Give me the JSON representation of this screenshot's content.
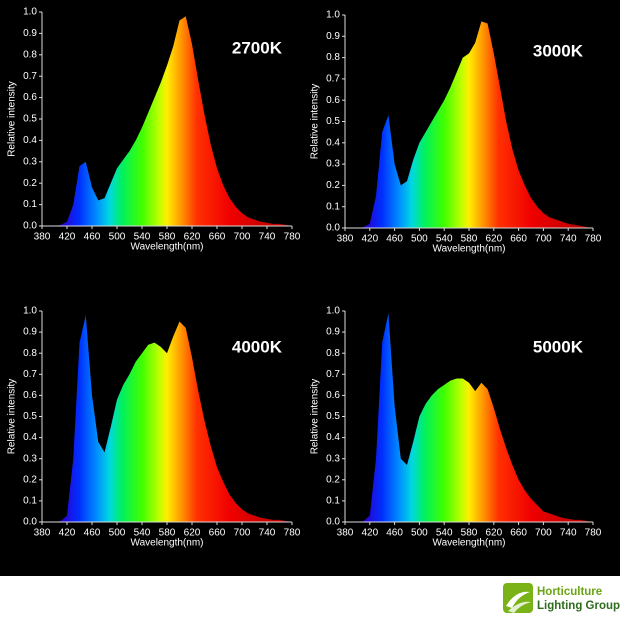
{
  "chart_data": [
    {
      "type": "area",
      "label": "2700K",
      "xlabel": "Wavelength(nm)",
      "ylabel": "Relative intensity",
      "x": [
        380,
        390,
        400,
        410,
        420,
        430,
        440,
        450,
        460,
        470,
        480,
        490,
        500,
        510,
        520,
        530,
        540,
        550,
        560,
        570,
        580,
        590,
        600,
        610,
        620,
        630,
        640,
        650,
        660,
        670,
        680,
        690,
        700,
        710,
        720,
        730,
        740,
        750,
        760,
        770,
        780
      ],
      "values": [
        0,
        0,
        0,
        0.005,
        0.02,
        0.1,
        0.28,
        0.3,
        0.18,
        0.12,
        0.13,
        0.2,
        0.27,
        0.31,
        0.35,
        0.4,
        0.46,
        0.53,
        0.6,
        0.67,
        0.75,
        0.84,
        0.96,
        0.98,
        0.85,
        0.68,
        0.52,
        0.38,
        0.27,
        0.19,
        0.13,
        0.09,
        0.06,
        0.04,
        0.03,
        0.02,
        0.015,
        0.01,
        0.01,
        0.005,
        0
      ],
      "xlim": [
        380,
        780
      ],
      "xticks": [
        380,
        420,
        460,
        500,
        540,
        580,
        620,
        660,
        700,
        740,
        780
      ],
      "ylim": [
        0,
        1
      ],
      "yticks": [
        {
          "value": 0,
          "label": "0.0"
        },
        0.1,
        0.2,
        0.3,
        0.4,
        0.5,
        0.6,
        0.7,
        0.8,
        0.9,
        {
          "value": 1,
          "label": "1.0"
        }
      ]
    },
    {
      "type": "area",
      "label": "3000K",
      "xlabel": "Wavelength(nm)",
      "ylabel": "Relative intensity",
      "x": [
        380,
        390,
        400,
        410,
        420,
        430,
        440,
        450,
        460,
        470,
        480,
        490,
        500,
        510,
        520,
        530,
        540,
        550,
        560,
        570,
        580,
        590,
        600,
        610,
        620,
        630,
        640,
        650,
        660,
        670,
        680,
        690,
        700,
        710,
        720,
        730,
        740,
        750,
        760,
        770,
        780
      ],
      "values": [
        0,
        0,
        0,
        0.005,
        0.02,
        0.15,
        0.45,
        0.53,
        0.3,
        0.2,
        0.22,
        0.32,
        0.4,
        0.45,
        0.5,
        0.55,
        0.6,
        0.66,
        0.73,
        0.8,
        0.82,
        0.87,
        0.97,
        0.96,
        0.82,
        0.66,
        0.5,
        0.37,
        0.27,
        0.2,
        0.14,
        0.1,
        0.07,
        0.05,
        0.04,
        0.03,
        0.02,
        0.015,
        0.01,
        0.005,
        0
      ],
      "xlim": [
        380,
        780
      ],
      "xticks": [
        380,
        420,
        460,
        500,
        540,
        580,
        620,
        660,
        700,
        740,
        780
      ],
      "ylim": [
        0,
        1
      ],
      "yticks": [
        {
          "value": 0,
          "label": "0.0"
        },
        0.1,
        0.2,
        0.3,
        0.4,
        0.5,
        0.6,
        0.7,
        0.8,
        0.9,
        {
          "value": 1,
          "label": "1.0"
        }
      ]
    },
    {
      "type": "area",
      "label": "4000K",
      "xlabel": "Wavelength(nm)",
      "ylabel": "Relative intensity",
      "x": [
        380,
        390,
        400,
        410,
        420,
        430,
        440,
        450,
        460,
        470,
        480,
        490,
        500,
        510,
        520,
        530,
        540,
        550,
        560,
        570,
        580,
        590,
        600,
        610,
        620,
        630,
        640,
        650,
        660,
        670,
        680,
        690,
        700,
        710,
        720,
        730,
        740,
        750,
        760,
        770,
        780
      ],
      "values": [
        0,
        0,
        0,
        0.005,
        0.03,
        0.3,
        0.85,
        0.98,
        0.6,
        0.38,
        0.33,
        0.45,
        0.58,
        0.65,
        0.7,
        0.76,
        0.8,
        0.84,
        0.85,
        0.83,
        0.8,
        0.88,
        0.95,
        0.92,
        0.78,
        0.62,
        0.48,
        0.36,
        0.26,
        0.19,
        0.13,
        0.09,
        0.06,
        0.04,
        0.03,
        0.02,
        0.015,
        0.01,
        0.01,
        0.005,
        0
      ],
      "xlim": [
        380,
        780
      ],
      "xticks": [
        380,
        420,
        460,
        500,
        540,
        580,
        620,
        660,
        700,
        740,
        780
      ],
      "ylim": [
        0,
        1
      ],
      "yticks": [
        {
          "value": 0,
          "label": "0.0"
        },
        0.1,
        0.2,
        0.3,
        0.4,
        0.5,
        0.6,
        0.7,
        0.8,
        0.9,
        {
          "value": 1,
          "label": "1.0"
        }
      ]
    },
    {
      "type": "area",
      "label": "5000K",
      "xlabel": "Wavelength(nm)",
      "ylabel": "Relative intensity",
      "x": [
        380,
        390,
        400,
        410,
        420,
        430,
        440,
        450,
        460,
        470,
        480,
        490,
        500,
        510,
        520,
        530,
        540,
        550,
        560,
        570,
        580,
        590,
        600,
        610,
        620,
        630,
        640,
        650,
        660,
        670,
        680,
        690,
        700,
        710,
        720,
        730,
        740,
        750,
        760,
        770,
        780
      ],
      "values": [
        0,
        0,
        0,
        0.005,
        0.03,
        0.3,
        0.85,
        0.99,
        0.55,
        0.3,
        0.27,
        0.38,
        0.5,
        0.56,
        0.6,
        0.63,
        0.65,
        0.67,
        0.68,
        0.68,
        0.66,
        0.62,
        0.66,
        0.63,
        0.54,
        0.44,
        0.35,
        0.27,
        0.2,
        0.15,
        0.11,
        0.08,
        0.05,
        0.04,
        0.03,
        0.02,
        0.015,
        0.01,
        0.01,
        0.005,
        0
      ],
      "xlim": [
        380,
        780
      ],
      "xticks": [
        380,
        420,
        460,
        500,
        540,
        580,
        620,
        660,
        700,
        740,
        780
      ],
      "ylim": [
        0,
        1
      ],
      "yticks": [
        {
          "value": 0,
          "label": "0.0"
        },
        0.1,
        0.2,
        0.3,
        0.4,
        0.5,
        0.6,
        0.7,
        0.8,
        0.9,
        {
          "value": 1,
          "label": "1.0"
        }
      ]
    }
  ],
  "logo": {
    "line1": "Horticulture",
    "line2": "Lighting Group"
  }
}
